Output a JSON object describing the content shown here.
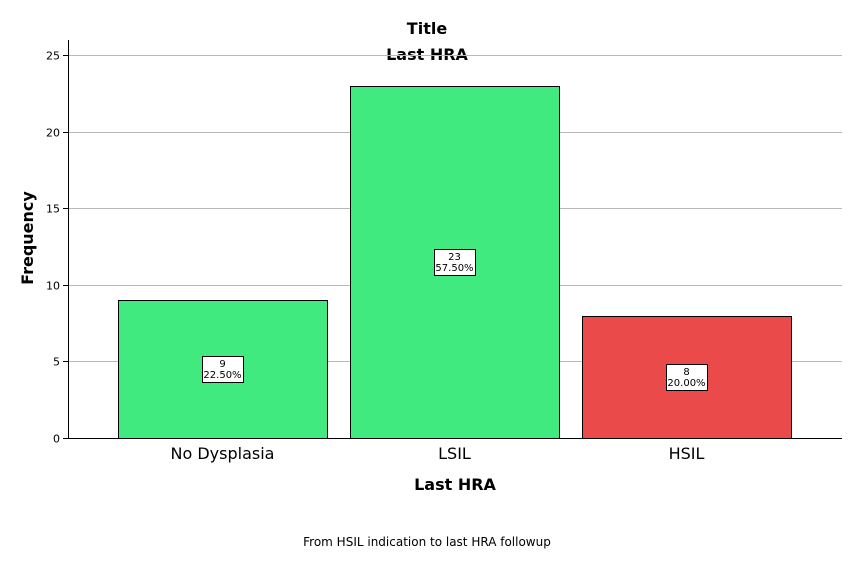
{
  "chart_data": {
    "type": "bar",
    "title": "Title",
    "subtitle": "Last HRA",
    "xlabel": "Last HRA",
    "ylabel": "Frequency",
    "footnote": "From HSIL indication to last HRA followup",
    "categories": [
      "No Dysplasia",
      "LSIL",
      "HSIL"
    ],
    "values": [
      9,
      23,
      8
    ],
    "percent_labels": [
      "22.50%",
      "57.50%",
      "20.00%"
    ],
    "bar_colors": [
      "#41ea7f",
      "#41ea7f",
      "#ea4a4a"
    ],
    "ylim": [
      0,
      26
    ],
    "yticks": [
      0,
      5,
      10,
      15,
      20,
      25
    ],
    "grid": true,
    "legend": "none"
  }
}
